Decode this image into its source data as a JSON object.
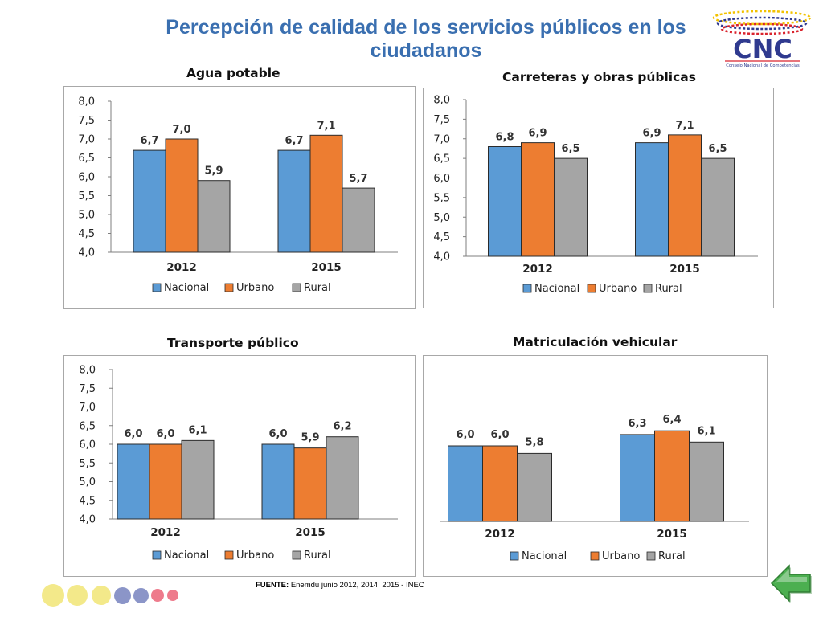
{
  "title": "Percepción de calidad de los servicios públicos en los ciudadanos",
  "logo": {
    "text": "CNC",
    "subtitle": "Consejo Nacional de Competencias"
  },
  "source": {
    "label": "FUENTE:",
    "text": "Enemdu junio 2012, 2014, 2015 - INEC"
  },
  "colors": {
    "nacional": "#5b9bd5",
    "urbano": "#ed7d31",
    "rural": "#a5a5a5",
    "title": "#3a6fb0"
  },
  "legend": [
    "Nacional",
    "Urbano",
    "Rural"
  ],
  "decorative_dots": [
    "#f3e98a",
    "#f3e98a",
    "#f3e98a",
    "#8b95c8",
    "#8b95c8",
    "#ee7b8c",
    "#ee7b8c"
  ],
  "chart_data": [
    {
      "type": "bar",
      "title": "Agua potable",
      "categories": [
        "2012",
        "2015"
      ],
      "series": [
        {
          "name": "Nacional",
          "values": [
            6.7,
            6.7
          ]
        },
        {
          "name": "Urbano",
          "values": [
            7.0,
            7.1
          ]
        },
        {
          "name": "Rural",
          "values": [
            5.9,
            5.7
          ]
        }
      ],
      "ylim": [
        4.0,
        8.0
      ],
      "yticks": [
        "8,0",
        "7,5",
        "7,0",
        "6,5",
        "6,0",
        "5,5",
        "5,0",
        "4,5",
        "4,0"
      ],
      "xlabel": "",
      "ylabel": ""
    },
    {
      "type": "bar",
      "title": "Carreteras y obras públicas",
      "categories": [
        "2012",
        "2015"
      ],
      "series": [
        {
          "name": "Nacional",
          "values": [
            6.8,
            6.9
          ]
        },
        {
          "name": "Urbano",
          "values": [
            6.9,
            7.1
          ]
        },
        {
          "name": "Rural",
          "values": [
            6.5,
            6.5
          ]
        }
      ],
      "ylim": [
        4.0,
        8.0
      ],
      "yticks": [
        "8,0",
        "7,5",
        "7,0",
        "6,5",
        "6,0",
        "5,5",
        "5,0",
        "4,5",
        "4,0"
      ],
      "xlabel": "",
      "ylabel": ""
    },
    {
      "type": "bar",
      "title": "Transporte público",
      "categories": [
        "2012",
        "2015"
      ],
      "series": [
        {
          "name": "Nacional",
          "values": [
            6.0,
            6.0
          ]
        },
        {
          "name": "Urbano",
          "values": [
            6.0,
            5.9
          ]
        },
        {
          "name": "Rural",
          "values": [
            6.1,
            6.2
          ]
        }
      ],
      "ylim": [
        4.0,
        8.0
      ],
      "yticks": [
        "8,0",
        "7,5",
        "7,0",
        "6,5",
        "6,0",
        "5,5",
        "5,0",
        "4,5",
        "4,0"
      ],
      "xlabel": "",
      "ylabel": ""
    },
    {
      "type": "bar",
      "title": "Matriculación vehicular",
      "categories": [
        "2012",
        "2015"
      ],
      "series": [
        {
          "name": "Nacional",
          "values": [
            6.0,
            6.3
          ]
        },
        {
          "name": "Urbano",
          "values": [
            6.0,
            6.4
          ]
        },
        {
          "name": "Rural",
          "values": [
            5.8,
            6.1
          ]
        }
      ],
      "ylim": [
        4.0,
        8.0
      ],
      "yticks": [],
      "xlabel": "",
      "ylabel": ""
    }
  ]
}
